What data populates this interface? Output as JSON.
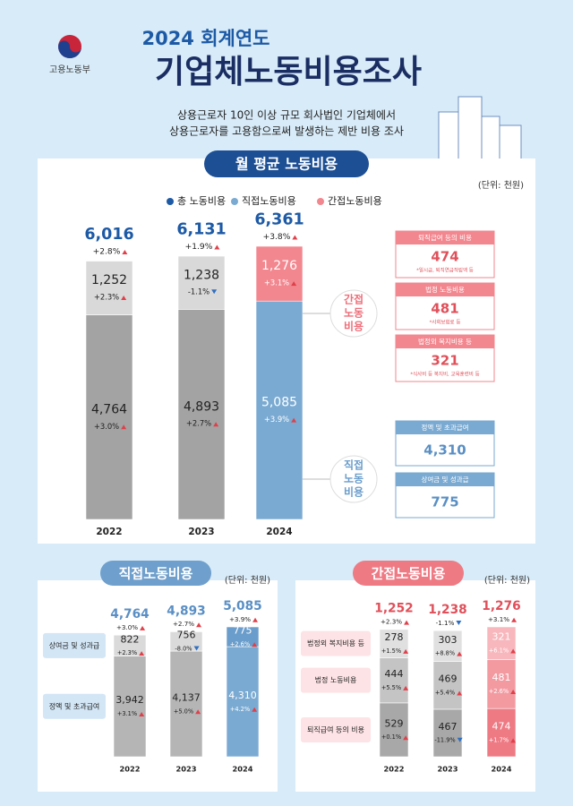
{
  "header": {
    "ministry": "고용노동부",
    "year_title": "2024 회계연도",
    "title": "기업체노동비용조사",
    "subtitle": [
      "상용근로자 10인 이상 규모 회사법인 기업체에서",
      "상용근로자를 고용함으로써 발생하는 제반 비용 조사"
    ]
  },
  "chart_data": [
    {
      "type": "bar",
      "stacked": true,
      "title": "월 평균 노동비용",
      "unit": "(단위: 천원)",
      "legend": true,
      "categories": [
        "2022",
        "2023",
        "2024"
      ],
      "highlight": "2024",
      "total_name": "총 노동비용",
      "total_color": "#1d5aa6",
      "totals": [
        6016,
        6131,
        6361
      ],
      "total_labels": [
        "6,016",
        "6,131",
        "6,361"
      ],
      "total_changes": [
        "+2.8%",
        "+1.9%",
        "+3.8%"
      ],
      "series": [
        {
          "name": "직접노동비용",
          "color": "#7aaad2",
          "muted_color": "#a3a3a3",
          "values": [
            4764,
            4893,
            5085
          ],
          "value_labels": [
            "4,764",
            "4,893",
            "5,085"
          ],
          "changes": [
            "+3.0%",
            "+2.7%",
            "+3.9%"
          ]
        },
        {
          "name": "간접노동비용",
          "color": "#f2878f",
          "muted_color": "#d9d9d9",
          "values": [
            1252,
            1238,
            1276
          ],
          "value_labels": [
            "1,252",
            "1,238",
            "1,276"
          ],
          "changes": [
            "+2.3%",
            "-1.1%",
            "+3.1%"
          ]
        }
      ]
    },
    {
      "type": "bar",
      "stacked": true,
      "title": "직접노동비용",
      "unit": "(단위: 천원)",
      "categories": [
        "2022",
        "2023",
        "2024"
      ],
      "highlight": "2024",
      "total_color": "#5a8fc4",
      "totals": [
        4764,
        4893,
        5085
      ],
      "total_labels": [
        "4,764",
        "4,893",
        "5,085"
      ],
      "total_changes": [
        "+3.0%",
        "+2.7%",
        "+3.9%"
      ],
      "series": [
        {
          "name": "정액 및 초과급여",
          "color": "#7aaad2",
          "muted_color": "#b5b5b5",
          "values": [
            3942,
            4137,
            4310
          ],
          "value_labels": [
            "3,942",
            "4,137",
            "4,310"
          ],
          "changes": [
            "+3.1%",
            "+5.0%",
            "+4.2%"
          ]
        },
        {
          "name": "상여금 및 성과급",
          "color": "#6a9dcb",
          "muted_color": "#dadada",
          "values": [
            822,
            756,
            775
          ],
          "changes": [
            "+2.3%",
            "-8.0%",
            "+2.6%"
          ]
        }
      ]
    },
    {
      "type": "bar",
      "stacked": true,
      "title": "간접노동비용",
      "unit": "(단위: 천원)",
      "categories": [
        "2022",
        "2023",
        "2024"
      ],
      "highlight": "2024",
      "total_color": "#e0505a",
      "totals": [
        1252,
        1238,
        1276
      ],
      "total_labels": [
        "1,252",
        "1,238",
        "1,276"
      ],
      "total_changes": [
        "+2.3%",
        "-1.1%",
        "+3.1%"
      ],
      "series": [
        {
          "name": "퇴직급여 등의 비용",
          "color": "#ee7a84",
          "muted_color": "#a8a8a8",
          "values": [
            529,
            467,
            474
          ],
          "changes": [
            "+0.1%",
            "-11.9%",
            "+1.7%"
          ]
        },
        {
          "name": "법정 노동비용",
          "color": "#f39aa1",
          "muted_color": "#c4c4c4",
          "values": [
            444,
            469,
            481
          ],
          "changes": [
            "+5.5%",
            "+5.4%",
            "+2.6%"
          ]
        },
        {
          "name": "법정외 복지비용 등",
          "color": "#f7b7bc",
          "muted_color": "#e0e0e0",
          "values": [
            278,
            303,
            321
          ],
          "changes": [
            "+1.5%",
            "+8.8%",
            "+6.1%"
          ]
        }
      ]
    }
  ],
  "breakdown": {
    "indirect": {
      "label_lines": [
        "간접",
        "노동",
        "비용"
      ],
      "items": [
        {
          "name": "퇴직급여 등의 비용",
          "value": "474",
          "note": "*일시금, 퇴직연금적립액 등"
        },
        {
          "name": "법정 노동비용",
          "value": "481",
          "note": "*사회보험료 등"
        },
        {
          "name": "법정외 복지비용 등",
          "value": "321",
          "note": "*식사비 등 복지비, 교육훈련비 등"
        }
      ]
    },
    "direct": {
      "label_lines": [
        "직접",
        "노동",
        "비용"
      ],
      "items": [
        {
          "name": "정액 및 초과급여",
          "value": "4,310"
        },
        {
          "name": "상여금 및 성과급",
          "value": "775"
        }
      ]
    }
  }
}
